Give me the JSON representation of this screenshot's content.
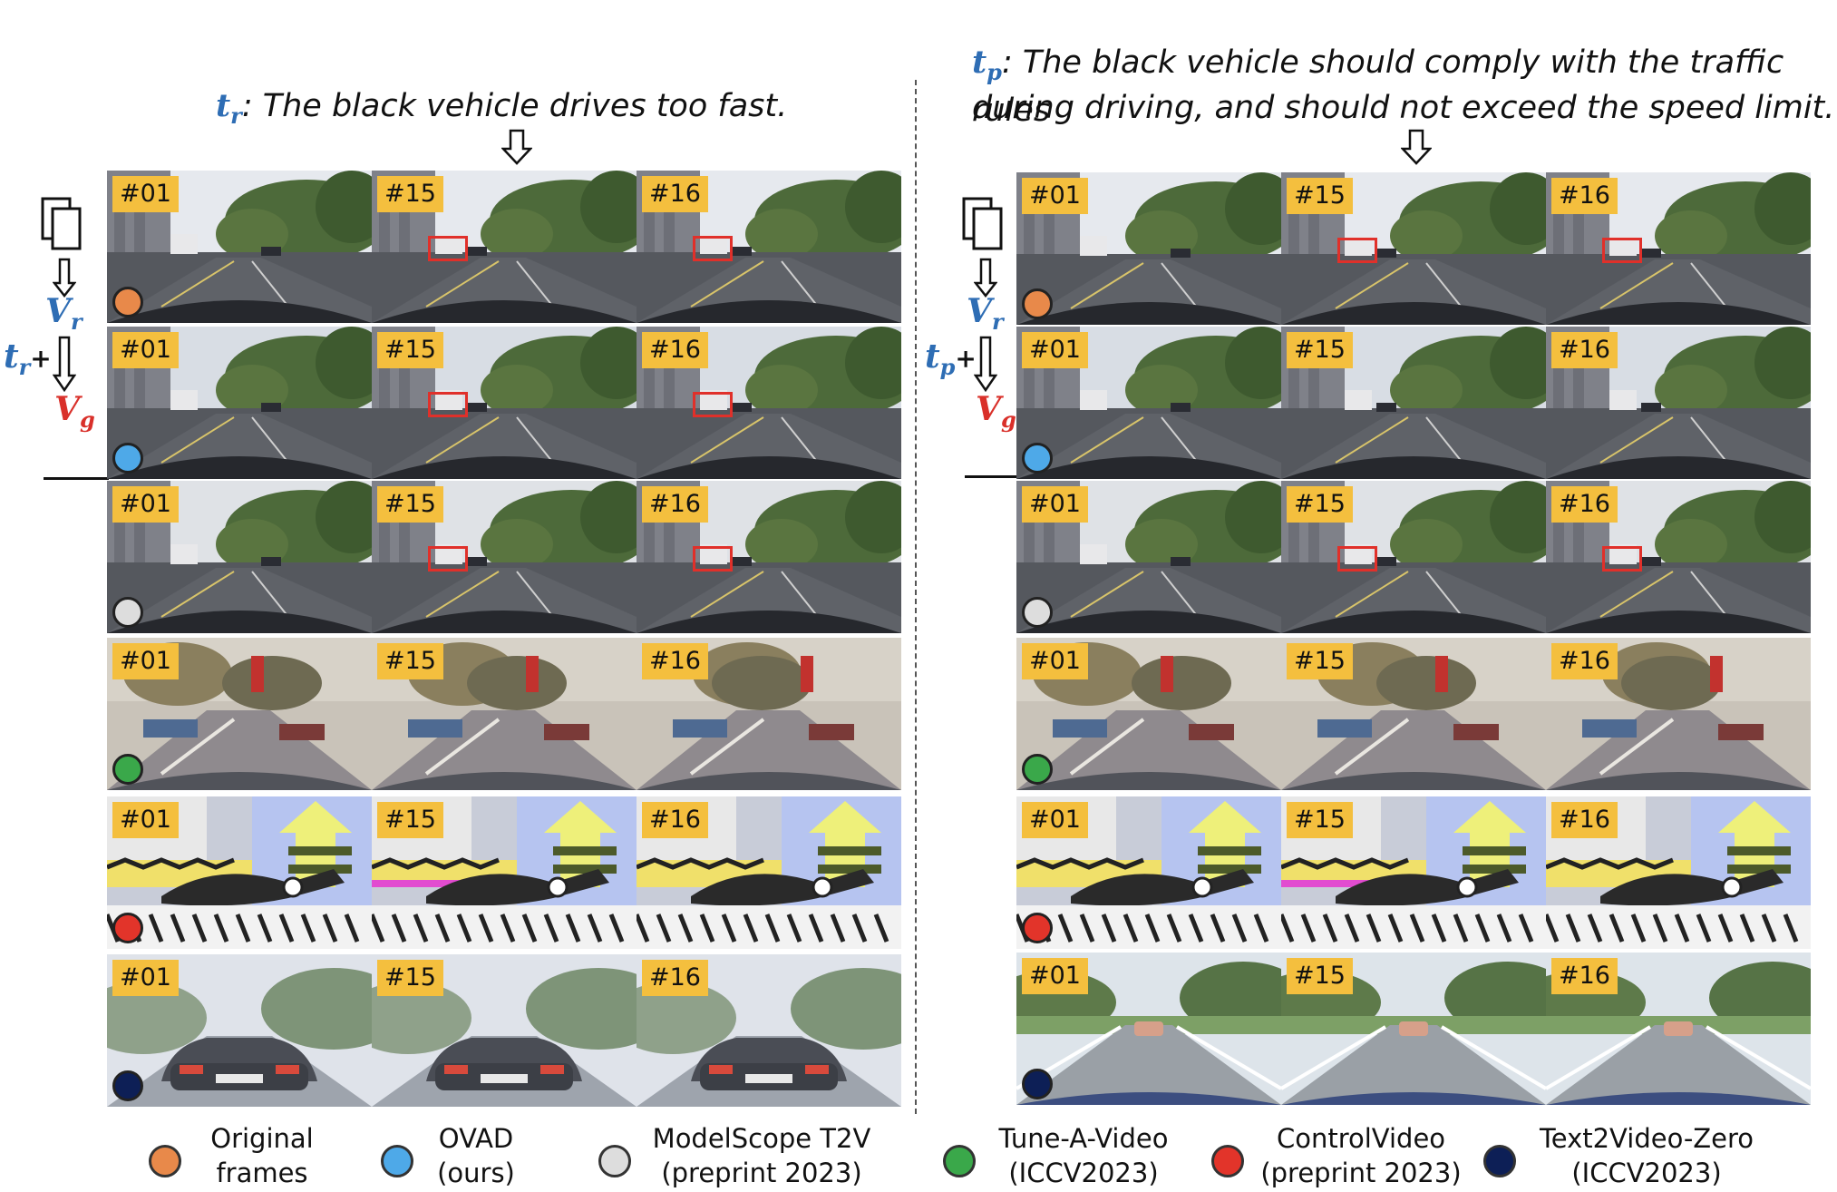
{
  "left_panel": {
    "caption_symbol": "t",
    "caption_sub": "r",
    "caption_text": ": The black vehicle drives too fast.",
    "diagram": {
      "v_r": "V",
      "v_r_sub": "r",
      "t_plus": "t",
      "t_plus_sub": "r",
      "plus_sign": "+",
      "v_g": "V",
      "v_g_sub": "g"
    }
  },
  "right_panel": {
    "caption_symbol": "t",
    "caption_sub": "p",
    "caption_line1": ": The black vehicle should comply with the traffic rules",
    "caption_line2": "during driving, and should not exceed the speed limit.",
    "diagram": {
      "v_r": "V",
      "v_r_sub": "r",
      "t_plus": "t",
      "t_plus_sub": "p",
      "plus_sign": "+",
      "v_g": "V",
      "v_g_sub": "g"
    }
  },
  "frame_labels": [
    "#01",
    "#15",
    "#16"
  ],
  "rows": [
    {
      "method": "Original frames",
      "color": "#e8894a",
      "style": "street"
    },
    {
      "method": "OVAD (ours)",
      "color": "#4ea9e8",
      "style": "street"
    },
    {
      "method": "ModelScope T2V",
      "color": "#dddddd",
      "style": "street"
    },
    {
      "method": "Tune-A-Video",
      "color": "#3aa84a",
      "style": "abstract"
    },
    {
      "method": "ControlVideo",
      "color": "#e2342a",
      "style": "cartoon"
    },
    {
      "method": "Text2Video-Zero",
      "color": "#0d1f56",
      "style": "car"
    }
  ],
  "legend": [
    {
      "line1": "Original",
      "line2": "frames",
      "color": "#e8894a"
    },
    {
      "line1": "OVAD",
      "line2": "(ours)",
      "color": "#4ea9e8"
    },
    {
      "line1": "ModelScope T2V",
      "line2": "(preprint 2023)",
      "color": "#dddddd"
    },
    {
      "line1": "Tune-A-Video",
      "line2": "(ICCV2023)",
      "color": "#3aa84a"
    },
    {
      "line1": "ControlVideo",
      "line2": "(preprint 2023)",
      "color": "#e2342a"
    },
    {
      "line1": "Text2Video-Zero",
      "line2": "(ICCV2023)",
      "color": "#0d1f56"
    }
  ]
}
